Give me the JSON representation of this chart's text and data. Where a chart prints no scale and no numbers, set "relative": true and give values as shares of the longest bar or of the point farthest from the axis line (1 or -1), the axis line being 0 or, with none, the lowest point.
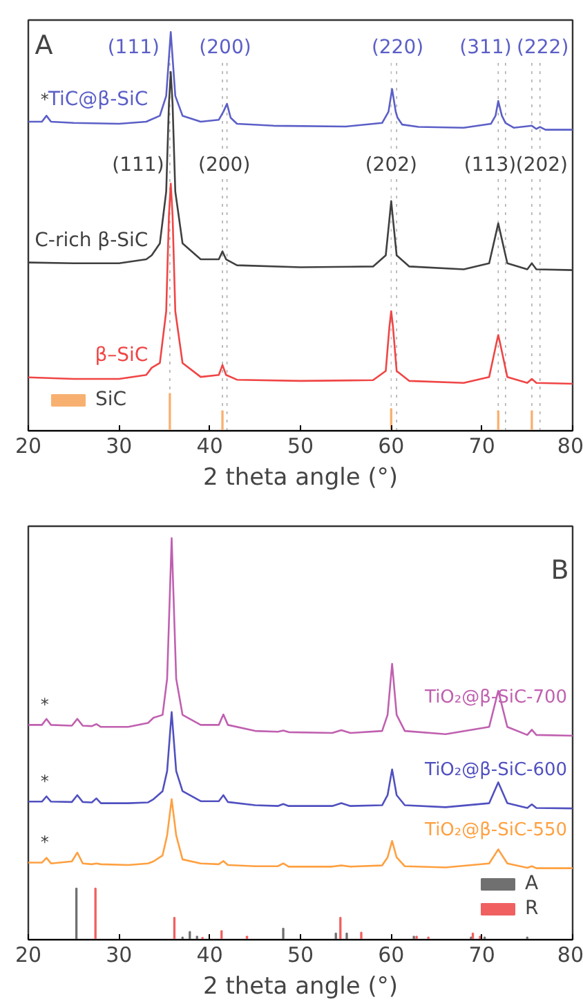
{
  "chart_data": [
    {
      "type": "line",
      "xlabel": "2 theta angle (°)",
      "relative": true,
      "xlim": [
        20,
        80
      ],
      "xticks": [
        20,
        30,
        40,
        50,
        60,
        70,
        80
      ],
      "tick_labels": "x",
      "legend": "bottom left",
      "annotations": [
        "A",
        "*",
        {
          "text": "(111)",
          "x": 31.6,
          "y": 0.96
        },
        {
          "text": "(200)",
          "x": 41.7,
          "y": 0.96
        },
        {
          "text": "(220)",
          "x": 60.7,
          "y": 0.96
        },
        {
          "text": "(311)",
          "x": 70.4,
          "y": 0.96
        },
        {
          "text": "(222)",
          "x": 76.7,
          "y": 0.96
        },
        {
          "text": "(111)",
          "x": 32.1,
          "y": 0.665
        },
        {
          "text": "(200)",
          "x": 41.6,
          "y": 0.665
        },
        {
          "text": "(202)",
          "x": 60.0,
          "y": 0.665
        },
        {
          "text": "(113)",
          "x": 70.9,
          "y": 0.665
        },
        {
          "text": "(202)",
          "x": 76.6,
          "y": 0.665
        }
      ],
      "ref_lines": [
        {
          "axis": "x",
          "value": 35.6,
          "color": "#999999",
          "line_style": "dotted"
        },
        {
          "axis": "x",
          "value": 41.4,
          "color": "#999999",
          "line_style": "dotted"
        },
        {
          "axis": "x",
          "value": 41.9,
          "color": "#999999",
          "line_style": "dotted"
        },
        {
          "axis": "x",
          "value": 60.0,
          "color": "#b0b0b0",
          "line_style": "dotted"
        },
        {
          "axis": "x",
          "value": 60.6,
          "color": "#999999",
          "line_style": "dotted"
        },
        {
          "axis": "x",
          "value": 71.8,
          "color": "#999999",
          "line_style": "dotted"
        },
        {
          "axis": "x",
          "value": 72.6,
          "color": "#999999",
          "line_style": "dotted"
        },
        {
          "axis": "x",
          "value": 75.5,
          "color": "#999999",
          "line_style": "dotted"
        },
        {
          "axis": "x",
          "value": 76.4,
          "color": "#999999",
          "line_style": "dotted"
        }
      ],
      "series": [
        {
          "name": "TiC@β-SiC",
          "color": "#5b5fc7",
          "x": [
            20,
            21.5,
            22,
            22.5,
            25,
            30,
            33,
            34.5,
            35.2,
            35.7,
            36.2,
            37,
            39,
            41,
            41.5,
            41.9,
            42.3,
            43,
            47,
            55,
            59,
            59.7,
            60.1,
            60.5,
            60.7,
            61.2,
            63,
            68,
            71,
            71.5,
            71.8,
            72.2,
            72.6,
            73.5,
            75.5,
            76,
            76.4,
            77,
            80
          ],
          "values": [
            0.775,
            0.775,
            0.79,
            0.775,
            0.772,
            0.77,
            0.775,
            0.79,
            0.84,
            1.0,
            0.84,
            0.79,
            0.775,
            0.78,
            0.8,
            0.82,
            0.785,
            0.77,
            0.765,
            0.763,
            0.772,
            0.8,
            0.857,
            0.8,
            0.785,
            0.768,
            0.762,
            0.76,
            0.77,
            0.79,
            0.827,
            0.79,
            0.772,
            0.76,
            0.765,
            0.757,
            0.762,
            0.755,
            0.755
          ]
        },
        {
          "name": "C-rich β-SiC",
          "color": "#404040",
          "x": [
            20,
            25,
            30,
            33,
            33.6,
            34.5,
            35.2,
            35.5,
            35.7,
            35.9,
            36.2,
            37,
            39,
            41,
            41.4,
            41.8,
            43,
            50,
            58,
            59.4,
            59.8,
            60,
            60.2,
            60.6,
            62,
            68,
            70.8,
            71.6,
            71.8,
            72,
            72.8,
            75,
            75.5,
            76,
            80
          ],
          "values": [
            0.422,
            0.42,
            0.42,
            0.43,
            0.44,
            0.47,
            0.6,
            0.82,
            0.9,
            0.82,
            0.6,
            0.47,
            0.43,
            0.43,
            0.45,
            0.43,
            0.415,
            0.41,
            0.412,
            0.44,
            0.53,
            0.576,
            0.53,
            0.44,
            0.412,
            0.405,
            0.42,
            0.5,
            0.52,
            0.5,
            0.42,
            0.405,
            0.42,
            0.405,
            0.403
          ]
        },
        {
          "name": "β–SiC",
          "color": "#f04545",
          "x": [
            20,
            25,
            30,
            33,
            33.6,
            34.5,
            35.2,
            35.5,
            35.7,
            35.9,
            36.2,
            37,
            39,
            41,
            41.4,
            41.8,
            43,
            50,
            58,
            59.4,
            59.8,
            60,
            60.2,
            60.6,
            62,
            68,
            70.8,
            71.6,
            71.8,
            72,
            72.8,
            75,
            75.5,
            76,
            80
          ],
          "values": [
            0.134,
            0.13,
            0.13,
            0.14,
            0.158,
            0.17,
            0.3,
            0.54,
            0.62,
            0.54,
            0.3,
            0.17,
            0.135,
            0.14,
            0.165,
            0.14,
            0.128,
            0.125,
            0.127,
            0.15,
            0.26,
            0.3,
            0.26,
            0.15,
            0.125,
            0.12,
            0.135,
            0.22,
            0.24,
            0.22,
            0.135,
            0.12,
            0.13,
            0.12,
            0.118
          ]
        },
        {
          "name": "SiC",
          "type": "bar",
          "color": "#f8b070",
          "x": [
            35.6,
            41.4,
            60.0,
            71.8,
            75.5
          ],
          "values": [
            0.093,
            0.05,
            0.055,
            0.05,
            0.05
          ]
        }
      ]
    },
    {
      "type": "line",
      "xlabel": "2 theta angle (°)",
      "relative": true,
      "xlim": [
        20,
        80
      ],
      "xticks": [
        20,
        30,
        40,
        50,
        60,
        70,
        80
      ],
      "tick_labels": "x",
      "legend": "bottom right",
      "x": [
        20,
        21.5,
        22,
        22.5,
        24.8,
        25.4,
        26,
        27,
        27.5,
        28,
        31,
        33.2,
        33.8,
        34.8,
        35.3,
        35.8,
        36.3,
        37,
        39,
        41,
        41.5,
        42,
        45,
        47.5,
        48.1,
        48.7,
        53.5,
        54.5,
        55.5,
        59,
        59.6,
        60.1,
        60.6,
        61.5,
        66,
        70.8,
        71.8,
        72.8,
        75,
        75.5,
        76,
        80
      ],
      "annotations": [
        "B",
        "*",
        "*",
        "*"
      ],
      "series": [
        {
          "name": "TiO₂@β-SiC-700",
          "color": "#c060b0",
          "values": [
            0.535,
            0.535,
            0.55,
            0.535,
            0.533,
            0.55,
            0.533,
            0.532,
            0.537,
            0.53,
            0.53,
            0.54,
            0.553,
            0.56,
            0.65,
            1.0,
            0.65,
            0.56,
            0.535,
            0.535,
            0.561,
            0.535,
            0.52,
            0.518,
            0.521,
            0.517,
            0.515,
            0.522,
            0.515,
            0.52,
            0.56,
            0.687,
            0.56,
            0.52,
            0.512,
            0.53,
            0.62,
            0.53,
            0.51,
            0.523,
            0.51,
            0.508
          ]
        },
        {
          "name": "TiO₂@β-SiC-600",
          "color": "#5050c0",
          "values": [
            0.344,
            0.344,
            0.357,
            0.344,
            0.343,
            0.36,
            0.343,
            0.342,
            0.352,
            0.34,
            0.34,
            0.342,
            0.35,
            0.37,
            0.42,
            0.567,
            0.42,
            0.37,
            0.345,
            0.345,
            0.36,
            0.343,
            0.335,
            0.333,
            0.338,
            0.333,
            0.333,
            0.34,
            0.333,
            0.335,
            0.36,
            0.424,
            0.36,
            0.335,
            0.33,
            0.34,
            0.392,
            0.34,
            0.328,
            0.337,
            0.328,
            0.327
          ]
        },
        {
          "name": "TiO₂@β-SiC-550",
          "color": "#ffa040",
          "values": [
            0.192,
            0.192,
            0.204,
            0.19,
            0.195,
            0.217,
            0.19,
            0.188,
            0.19,
            0.188,
            0.186,
            0.19,
            0.195,
            0.21,
            0.26,
            0.35,
            0.26,
            0.2,
            0.19,
            0.188,
            0.196,
            0.186,
            0.183,
            0.183,
            0.19,
            0.182,
            0.182,
            0.185,
            0.182,
            0.185,
            0.205,
            0.246,
            0.205,
            0.183,
            0.18,
            0.19,
            0.225,
            0.19,
            0.179,
            0.183,
            0.178,
            0.178
          ]
        },
        {
          "name": "A",
          "type": "bar",
          "color": "#707070",
          "x": [
            25.3,
            37.0,
            37.8,
            38.6,
            48.1,
            53.9,
            55.1,
            62.5,
            68.8,
            70.3,
            75.0
          ],
          "values": [
            0.128,
            0.006,
            0.02,
            0.008,
            0.028,
            0.016,
            0.016,
            0.008,
            0.006,
            0.006,
            0.006
          ]
        },
        {
          "name": "R",
          "type": "bar",
          "color": "#f06060",
          "x": [
            27.4,
            36.1,
            39.2,
            41.3,
            44.1,
            54.4,
            56.7,
            62.8,
            64.1,
            69.0,
            69.8
          ],
          "values": [
            0.128,
            0.055,
            0.005,
            0.022,
            0.008,
            0.055,
            0.018,
            0.008,
            0.006,
            0.016,
            0.008
          ]
        }
      ]
    }
  ]
}
